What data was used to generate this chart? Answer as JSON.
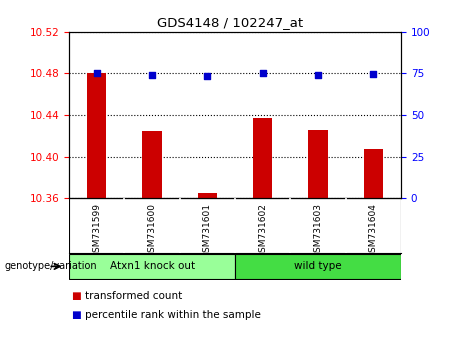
{
  "title": "GDS4148 / 102247_at",
  "samples": [
    "GSM731599",
    "GSM731600",
    "GSM731601",
    "GSM731602",
    "GSM731603",
    "GSM731604"
  ],
  "bar_values": [
    10.48,
    10.425,
    10.365,
    10.437,
    10.426,
    10.407
  ],
  "percentile_values": [
    75.5,
    74.0,
    73.5,
    75.5,
    74.0,
    74.5
  ],
  "ylim_left": [
    10.36,
    10.52
  ],
  "ylim_right": [
    0,
    100
  ],
  "yticks_left": [
    10.36,
    10.4,
    10.44,
    10.48,
    10.52
  ],
  "yticks_right": [
    0,
    25,
    50,
    75,
    100
  ],
  "bar_color": "#cc0000",
  "dot_color": "#0000cc",
  "groups": [
    {
      "label": "Atxn1 knock out",
      "indices": [
        0,
        1,
        2
      ],
      "color": "#99ff99"
    },
    {
      "label": "wild type",
      "indices": [
        3,
        4,
        5
      ],
      "color": "#44dd44"
    }
  ],
  "legend_items": [
    {
      "label": "transformed count",
      "color": "#cc0000"
    },
    {
      "label": "percentile rank within the sample",
      "color": "#0000cc"
    }
  ],
  "bg_color": "#ffffff",
  "plot_bg_color": "#ffffff",
  "sample_box_color": "#c8c8c8",
  "genotype_label": "genotype/variation"
}
